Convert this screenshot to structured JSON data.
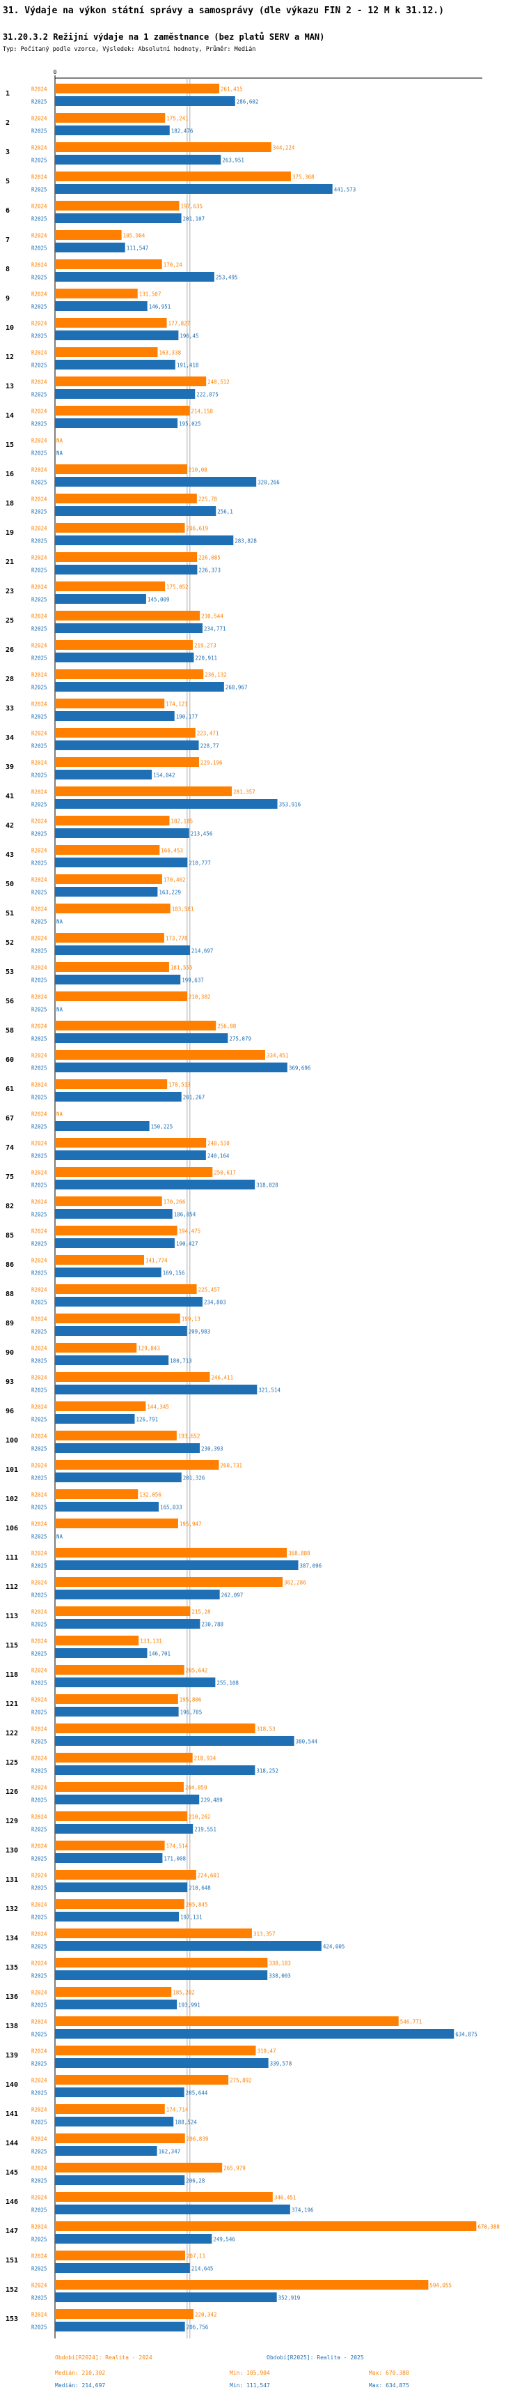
{
  "header": {
    "title": "31. Výdaje na výkon státní správy a samosprávy (dle výkazu FIN 2 - 12 M k 31.12.)",
    "subtitle": "31.20.3.2 Režijní výdaje na 1 zaměstnance (bez platů SERV a MAN)",
    "info": "Typ: Počítaný podle vzorce, Výsledek: Absolutní hodnoty, Průměr: Medián"
  },
  "colors": {
    "r2024": "#ff8000",
    "r2025": "#1f6fb4",
    "axis": "#000000",
    "median": "#999999"
  },
  "chart_data": {
    "type": "bar",
    "orientation": "horizontal",
    "zero_tick_label": "0",
    "missing_label": "NA",
    "xlim": [
      0,
      680000
    ],
    "series": [
      {
        "name": "R2024",
        "label": "R2024",
        "legend": "Období[R2024]: Realita - 2024",
        "median_text": "Medián: 210,302",
        "min_text": "Min: 105,904",
        "max_text": "Max: 670,388",
        "median": 210302
      },
      {
        "name": "R2025",
        "label": "R2025",
        "legend": "Období[R2025]: Realita - 2025",
        "median_text": "Medián: 214,697",
        "min_text": "Min: 111,547",
        "max_text": "Max: 634,875",
        "median": 214697
      }
    ],
    "groups": [
      {
        "id": "1",
        "v2024": 261415,
        "l2024": "261,415",
        "v2025": 286602,
        "l2025": "286,602"
      },
      {
        "id": "2",
        "v2024": 175241,
        "l2024": "175,241",
        "v2025": 182476,
        "l2025": "182,476"
      },
      {
        "id": "3",
        "v2024": 344224,
        "l2024": "344,224",
        "v2025": 263951,
        "l2025": "263,951"
      },
      {
        "id": "5",
        "v2024": 375368,
        "l2024": "375,368",
        "v2025": 441573,
        "l2025": "441,573"
      },
      {
        "id": "6",
        "v2024": 197635,
        "l2024": "197,635",
        "v2025": 201107,
        "l2025": "201,107"
      },
      {
        "id": "7",
        "v2024": 105904,
        "l2024": "105,904",
        "v2025": 111547,
        "l2025": "111,547"
      },
      {
        "id": "8",
        "v2024": 170240,
        "l2024": "170,24",
        "v2025": 253495,
        "l2025": "253,495"
      },
      {
        "id": "9",
        "v2024": 131507,
        "l2024": "131,507",
        "v2025": 146951,
        "l2025": "146,951"
      },
      {
        "id": "10",
        "v2024": 177827,
        "l2024": "177,827",
        "v2025": 196450,
        "l2025": "196,45"
      },
      {
        "id": "12",
        "v2024": 163338,
        "l2024": "163,338",
        "v2025": 191418,
        "l2025": "191,418"
      },
      {
        "id": "13",
        "v2024": 240512,
        "l2024": "240,512",
        "v2025": 222875,
        "l2025": "222,875"
      },
      {
        "id": "14",
        "v2024": 214158,
        "l2024": "214,158",
        "v2025": 195025,
        "l2025": "195,025"
      },
      {
        "id": "15",
        "v2024": null,
        "l2024": "NA",
        "v2025": null,
        "l2025": "NA"
      },
      {
        "id": "16",
        "v2024": 210080,
        "l2024": "210,08",
        "v2025": 320266,
        "l2025": "320,266"
      },
      {
        "id": "18",
        "v2024": 225780,
        "l2024": "225,78",
        "v2025": 256100,
        "l2025": "256,1"
      },
      {
        "id": "19",
        "v2024": 206619,
        "l2024": "206,619",
        "v2025": 283828,
        "l2025": "283,828"
      },
      {
        "id": "21",
        "v2024": 226085,
        "l2024": "226,085",
        "v2025": 226373,
        "l2025": "226,373"
      },
      {
        "id": "23",
        "v2024": 175052,
        "l2024": "175,052",
        "v2025": 145009,
        "l2025": "145,009"
      },
      {
        "id": "25",
        "v2024": 230544,
        "l2024": "230,544",
        "v2025": 234771,
        "l2025": "234,771"
      },
      {
        "id": "26",
        "v2024": 219273,
        "l2024": "219,273",
        "v2025": 220911,
        "l2025": "220,911"
      },
      {
        "id": "28",
        "v2024": 236132,
        "l2024": "236,132",
        "v2025": 268967,
        "l2025": "268,967"
      },
      {
        "id": "33",
        "v2024": 174121,
        "l2024": "174,121",
        "v2025": 190177,
        "l2025": "190,177"
      },
      {
        "id": "34",
        "v2024": 223471,
        "l2024": "223,471",
        "v2025": 228770,
        "l2025": "228,77"
      },
      {
        "id": "39",
        "v2024": 229196,
        "l2024": "229,196",
        "v2025": 154042,
        "l2025": "154,042"
      },
      {
        "id": "41",
        "v2024": 281357,
        "l2024": "281,357",
        "v2025": 353916,
        "l2025": "353,916"
      },
      {
        "id": "42",
        "v2024": 182185,
        "l2024": "182,185",
        "v2025": 213456,
        "l2025": "213,456"
      },
      {
        "id": "43",
        "v2024": 166453,
        "l2024": "166,453",
        "v2025": 210777,
        "l2025": "210,777"
      },
      {
        "id": "50",
        "v2024": 170462,
        "l2024": "170,462",
        "v2025": 163229,
        "l2025": "163,229"
      },
      {
        "id": "51",
        "v2024": 183581,
        "l2024": "183,581",
        "v2025": null,
        "l2025": "NA"
      },
      {
        "id": "52",
        "v2024": 173778,
        "l2024": "173,778",
        "v2025": 214697,
        "l2025": "214,697"
      },
      {
        "id": "53",
        "v2024": 181555,
        "l2024": "181,555",
        "v2025": 199637,
        "l2025": "199,637"
      },
      {
        "id": "56",
        "v2024": 210302,
        "l2024": "210,302",
        "v2025": null,
        "l2025": "NA"
      },
      {
        "id": "58",
        "v2024": 256080,
        "l2024": "256,08",
        "v2025": 275079,
        "l2025": "275,079"
      },
      {
        "id": "60",
        "v2024": 334451,
        "l2024": "334,451",
        "v2025": 369696,
        "l2025": "369,696"
      },
      {
        "id": "61",
        "v2024": 178513,
        "l2024": "178,513",
        "v2025": 201267,
        "l2025": "201,267"
      },
      {
        "id": "67",
        "v2024": null,
        "l2024": "NA",
        "v2025": 150225,
        "l2025": "150,225"
      },
      {
        "id": "74",
        "v2024": 240510,
        "l2024": "240,510",
        "v2025": 240164,
        "l2025": "240,164"
      },
      {
        "id": "75",
        "v2024": 250617,
        "l2024": "250,617",
        "v2025": 318028,
        "l2025": "318,028"
      },
      {
        "id": "82",
        "v2024": 170266,
        "l2024": "170,266",
        "v2025": 186854,
        "l2025": "186,854"
      },
      {
        "id": "85",
        "v2024": 194475,
        "l2024": "194,475",
        "v2025": 190427,
        "l2025": "190,427"
      },
      {
        "id": "86",
        "v2024": 141774,
        "l2024": "141,774",
        "v2025": 169156,
        "l2025": "169,156"
      },
      {
        "id": "88",
        "v2024": 225457,
        "l2024": "225,457",
        "v2025": 234803,
        "l2025": "234,803"
      },
      {
        "id": "89",
        "v2024": 199130,
        "l2024": "199,13",
        "v2025": 209983,
        "l2025": "209,983"
      },
      {
        "id": "90",
        "v2024": 129843,
        "l2024": "129,843",
        "v2025": 180713,
        "l2025": "180,713"
      },
      {
        "id": "93",
        "v2024": 246411,
        "l2024": "246,411",
        "v2025": 321514,
        "l2025": "321,514"
      },
      {
        "id": "96",
        "v2024": 144345,
        "l2024": "144,345",
        "v2025": 126791,
        "l2025": "126,791"
      },
      {
        "id": "100",
        "v2024": 193652,
        "l2024": "193,652",
        "v2025": 230393,
        "l2025": "230,393"
      },
      {
        "id": "101",
        "v2024": 260731,
        "l2024": "260,731",
        "v2025": 201326,
        "l2025": "201,326"
      },
      {
        "id": "102",
        "v2024": 132056,
        "l2024": "132,056",
        "v2025": 165033,
        "l2025": "165,033"
      },
      {
        "id": "106",
        "v2024": 195947,
        "l2024": "195,947",
        "v2025": null,
        "l2025": "NA"
      },
      {
        "id": "111",
        "v2024": 368888,
        "l2024": "368,888",
        "v2025": 387096,
        "l2025": "387,096"
      },
      {
        "id": "112",
        "v2024": 362286,
        "l2024": "362,286",
        "v2025": 262097,
        "l2025": "262,097"
      },
      {
        "id": "113",
        "v2024": 215280,
        "l2024": "215,28",
        "v2025": 230788,
        "l2025": "230,788"
      },
      {
        "id": "115",
        "v2024": 133131,
        "l2024": "133,131",
        "v2025": 146701,
        "l2025": "146,701"
      },
      {
        "id": "118",
        "v2024": 205642,
        "l2024": "205,642",
        "v2025": 255108,
        "l2025": "255,108"
      },
      {
        "id": "121",
        "v2024": 195806,
        "l2024": "195,806",
        "v2025": 196705,
        "l2025": "196,705"
      },
      {
        "id": "122",
        "v2024": 318530,
        "l2024": "318,53",
        "v2025": 380544,
        "l2025": "380,544"
      },
      {
        "id": "125",
        "v2024": 218934,
        "l2024": "218,934",
        "v2025": 318252,
        "l2025": "318,252"
      },
      {
        "id": "126",
        "v2024": 204859,
        "l2024": "204,859",
        "v2025": 229489,
        "l2025": "229,489"
      },
      {
        "id": "129",
        "v2024": 210262,
        "l2024": "210,262",
        "v2025": 219551,
        "l2025": "219,551"
      },
      {
        "id": "130",
        "v2024": 174514,
        "l2024": "174,514",
        "v2025": 171008,
        "l2025": "171,008"
      },
      {
        "id": "131",
        "v2024": 224601,
        "l2024": "224,601",
        "v2025": 210648,
        "l2025": "210,648"
      },
      {
        "id": "132",
        "v2024": 205845,
        "l2024": "205,845",
        "v2025": 197131,
        "l2025": "197,131"
      },
      {
        "id": "134",
        "v2024": 313357,
        "l2024": "313,357",
        "v2025": 424005,
        "l2025": "424,005"
      },
      {
        "id": "135",
        "v2024": 338183,
        "l2024": "338,183",
        "v2025": 338003,
        "l2025": "338,003"
      },
      {
        "id": "136",
        "v2024": 185202,
        "l2024": "185,202",
        "v2025": 193991,
        "l2025": "193,991"
      },
      {
        "id": "138",
        "v2024": 546771,
        "l2024": "546,771",
        "v2025": 634875,
        "l2025": "634,875"
      },
      {
        "id": "139",
        "v2024": 319470,
        "l2024": "319,47",
        "v2025": 339578,
        "l2025": "339,578"
      },
      {
        "id": "140",
        "v2024": 275892,
        "l2024": "275,892",
        "v2025": 205644,
        "l2025": "205,644"
      },
      {
        "id": "141",
        "v2024": 174714,
        "l2024": "174,714",
        "v2025": 188524,
        "l2025": "188,524"
      },
      {
        "id": "144",
        "v2024": 206839,
        "l2024": "206,839",
        "v2025": 162347,
        "l2025": "162,347"
      },
      {
        "id": "145",
        "v2024": 265979,
        "l2024": "265,979",
        "v2025": 206280,
        "l2025": "206,28"
      },
      {
        "id": "146",
        "v2024": 346451,
        "l2024": "346,451",
        "v2025": 374196,
        "l2025": "374,196"
      },
      {
        "id": "147",
        "v2024": 670388,
        "l2024": "670,388",
        "v2025": 249546,
        "l2025": "249,546"
      },
      {
        "id": "151",
        "v2024": 207110,
        "l2024": "207,11",
        "v2025": 214645,
        "l2025": "214,645"
      },
      {
        "id": "152",
        "v2024": 594055,
        "l2024": "594,055",
        "v2025": 352919,
        "l2025": "352,919"
      },
      {
        "id": "153",
        "v2024": 220342,
        "l2024": "220,342",
        "v2025": 206756,
        "l2025": "206,756"
      }
    ]
  }
}
